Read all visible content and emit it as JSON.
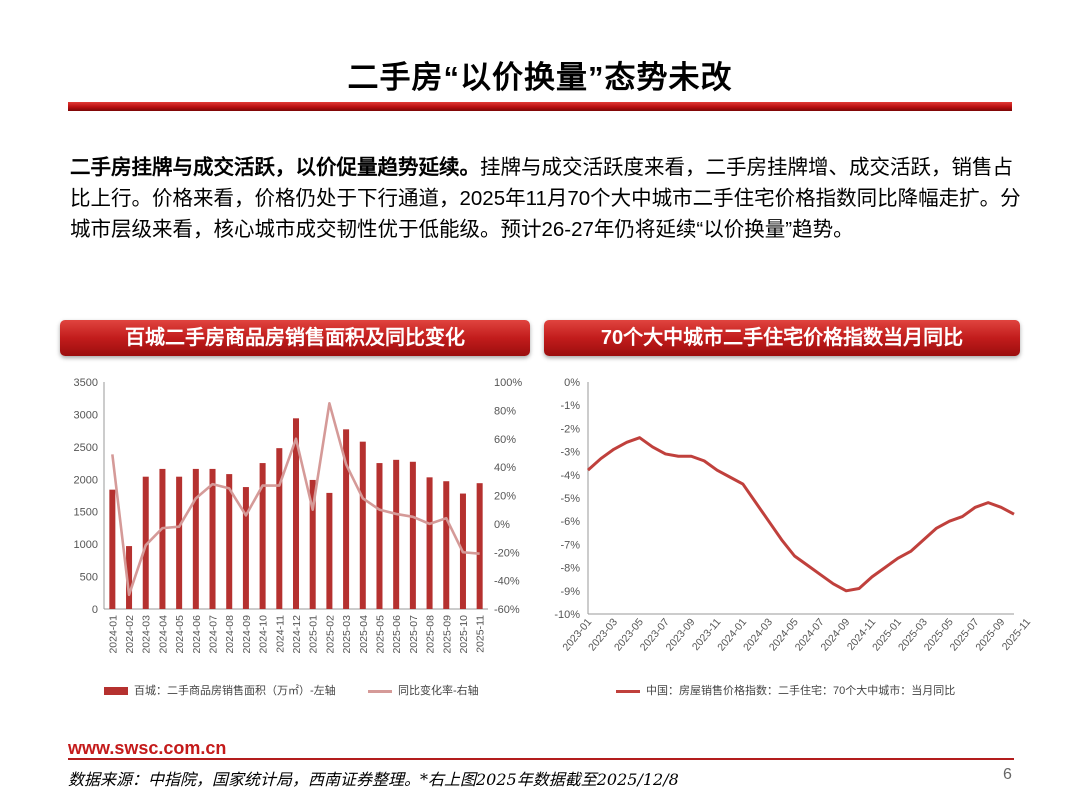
{
  "header": {
    "title": "二手房“以价换量”态势未改"
  },
  "intro": {
    "lead": "二手房挂牌与成交活跃，以价促量趋势延续。",
    "body": "挂牌与成交活跃度来看，二手房挂牌增、成交活跃，销售占比上行。价格来看，价格仍处于下行通道，2025年11月70个大中城市二手住宅价格指数同比降幅走扩。分城市层级来看，核心城市成交韧性优于低能级。预计26-27年仍将延续“以价换量”趋势。"
  },
  "colors": {
    "accent": "#c21c1c",
    "bar": "#b5312f",
    "line_yoy": "#d59a98",
    "line_price": "#c0403c"
  },
  "chart_data": [
    {
      "type": "bar",
      "banner": "百城二手房商品房销售面积及同比变化",
      "categories": [
        "2024-01",
        "2024-02",
        "2024-03",
        "2024-04",
        "2024-05",
        "2024-06",
        "2024-07",
        "2024-08",
        "2024-09",
        "2024-10",
        "2024-11",
        "2024-12",
        "2025-01",
        "2025-02",
        "2025-03",
        "2025-04",
        "2025-05",
        "2025-06",
        "2025-07",
        "2025-08",
        "2025-09",
        "2025-10",
        "2025-11"
      ],
      "left_ticks": [
        "0",
        "500",
        "1000",
        "1500",
        "2000",
        "2500",
        "3000",
        "3500"
      ],
      "right_ticks": [
        "-60%",
        "-40%",
        "-20%",
        "0%",
        "20%",
        "40%",
        "60%",
        "80%",
        "100%"
      ],
      "ylim_left": [
        0,
        3500
      ],
      "ylim_right": [
        -60,
        100
      ],
      "series": [
        {
          "name": "百城：二手商品房销售面积（万㎡）-左轴",
          "axis": "left",
          "kind": "bar",
          "values": [
            1840,
            970,
            2040,
            2160,
            2040,
            2160,
            2160,
            2080,
            1880,
            2250,
            2480,
            2940,
            1990,
            1790,
            2770,
            2580,
            2250,
            2300,
            2270,
            2030,
            1970,
            1780,
            1940
          ]
        },
        {
          "name": "同比变化率-右轴",
          "axis": "right",
          "kind": "line",
          "values": [
            49,
            -50,
            -15,
            -3,
            -2,
            18,
            28,
            25,
            6,
            27,
            27,
            60,
            10,
            85,
            42,
            18,
            10,
            7,
            5,
            0,
            4,
            -20,
            -21
          ]
        }
      ]
    },
    {
      "type": "line",
      "banner": "70个大中城市二手住宅价格指数当月同比",
      "x_ticks": [
        "2023-01",
        "2023-03",
        "2023-05",
        "2023-07",
        "2023-09",
        "2023-11",
        "2024-01",
        "2024-03",
        "2024-05",
        "2024-07",
        "2024-09",
        "2024-11",
        "2025-01",
        "2025-03",
        "2025-05",
        "2025-07",
        "2025-09",
        "2025-11"
      ],
      "y_ticks": [
        "0%",
        "-1%",
        "-2%",
        "-3%",
        "-4%",
        "-5%",
        "-6%",
        "-7%",
        "-8%",
        "-9%",
        "-10%"
      ],
      "ylim": [
        -10,
        0
      ],
      "series": [
        {
          "name": "中国：房屋销售价格指数：二手住宅：70个大中城市：当月同比",
          "values": [
            -3.8,
            -3.3,
            -2.9,
            -2.6,
            -2.4,
            -2.8,
            -3.1,
            -3.2,
            -3.2,
            -3.4,
            -3.8,
            -4.1,
            -4.4,
            -5.2,
            -6.0,
            -6.8,
            -7.5,
            -7.9,
            -8.3,
            -8.7,
            -9.0,
            -8.9,
            -8.4,
            -8.0,
            -7.6,
            -7.3,
            -6.8,
            -6.3,
            -6.0,
            -5.8,
            -5.4,
            -5.2,
            -5.4,
            -5.7
          ]
        }
      ]
    }
  ],
  "footer": {
    "site": "www.swsc.com.cn",
    "source": "数据来源：中指院，国家统计局，西南证券整理。*右上图2025年数据截至2025/12/8",
    "page": "6"
  }
}
